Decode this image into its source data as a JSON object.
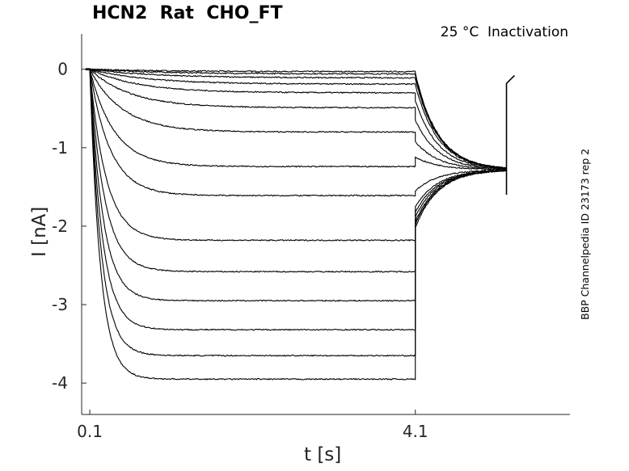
{
  "title": "HCN2  Rat  CHO_FT",
  "subtitle": "25 °C  Inactivation",
  "side_label": "BBP Channelpedia ID 23173 rep 2",
  "chart_data": {
    "type": "line",
    "title": "HCN2  Rat  CHO_FT",
    "xlabel": "t [s]",
    "ylabel": "I [nA]",
    "xlim": [
      0.0,
      6.0
    ],
    "ylim": [
      -4.4,
      0.45
    ],
    "x_ticks": [
      0.1,
      4.1
    ],
    "x_tick_labels": [
      "0.1",
      "4.1"
    ],
    "y_ticks": [
      0,
      -1,
      -2,
      -3,
      -4
    ],
    "y_tick_labels": [
      "0",
      "-1",
      "-2",
      "-3",
      "-4"
    ],
    "grid": false,
    "protocol": {
      "step_start_s": 0.1,
      "step_end_s": 4.1,
      "tail_end_s": 5.22,
      "tail_steady_nA": -1.28
    },
    "series": [
      {
        "steady": -0.03,
        "tail_start": -0.05,
        "tau": 0.9
      },
      {
        "steady": -0.06,
        "tail_start": -0.08,
        "tau": 0.9
      },
      {
        "steady": -0.11,
        "tail_start": -0.12,
        "tau": 0.8
      },
      {
        "steady": -0.19,
        "tail_start": -0.2,
        "tau": 0.7
      },
      {
        "steady": -0.3,
        "tail_start": -0.4,
        "tau": 0.6
      },
      {
        "steady": -0.49,
        "tail_start": -0.65,
        "tau": 0.5
      },
      {
        "steady": -0.8,
        "tail_start": -0.92,
        "tau": 0.4
      },
      {
        "steady": -1.24,
        "tail_start": -1.12,
        "tau": 0.3
      },
      {
        "steady": -1.61,
        "tail_start": -1.55,
        "tau": 0.25
      },
      {
        "steady": -2.18,
        "tail_start": -1.75,
        "tau": 0.2
      },
      {
        "steady": -2.58,
        "tail_start": -1.82,
        "tau": 0.18
      },
      {
        "steady": -2.95,
        "tail_start": -1.88,
        "tau": 0.16
      },
      {
        "steady": -3.32,
        "tail_start": -1.94,
        "tau": 0.15
      },
      {
        "steady": -3.65,
        "tail_start": -1.98,
        "tau": 0.14
      },
      {
        "steady": -3.95,
        "tail_start": -2.02,
        "tau": 0.13
      }
    ]
  }
}
